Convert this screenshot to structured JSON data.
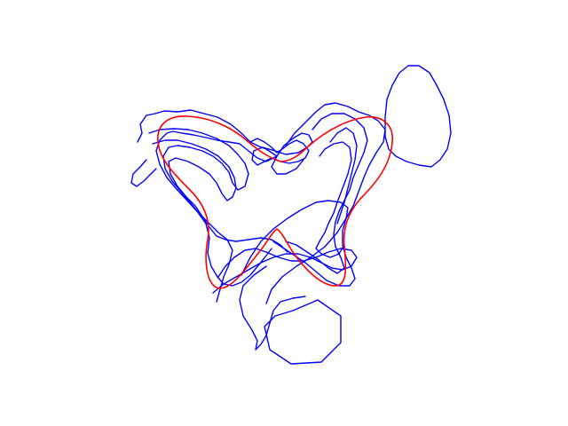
{
  "colors": {
    "background": "#ffffff",
    "trace": "#0000ff",
    "reference": "#ff0000"
  },
  "figure": {
    "description_hidden": true
  }
}
